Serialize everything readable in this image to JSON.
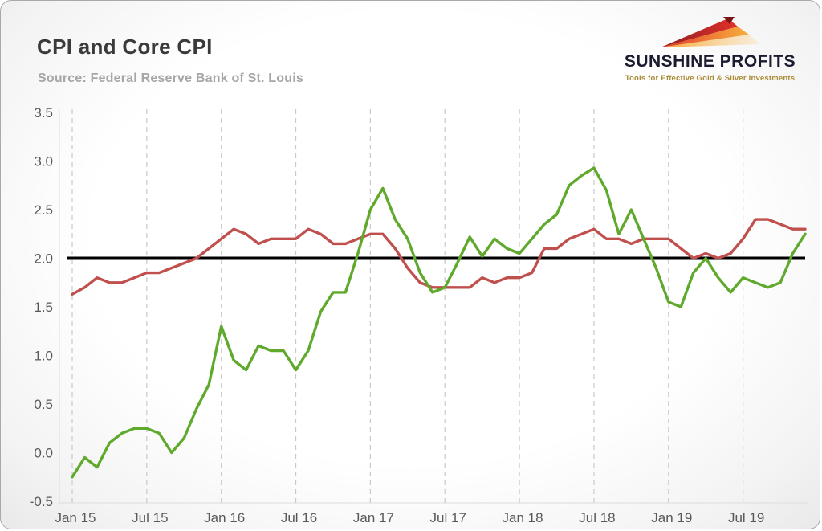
{
  "header": {
    "title": "CPI and Core CPI",
    "source": "Source: Federal Reserve Bank of St. Louis"
  },
  "logo": {
    "name": "SUNSHINE PROFITS",
    "tagline": "Tools for Effective Gold & Silver Investments"
  },
  "colors": {
    "cpi_green": "#5fa92c",
    "core_cpi_red": "#c0504d",
    "reference_black": "#000000",
    "gridline": "#c9c9c9",
    "tick_text": "#595959"
  },
  "chart_data": {
    "type": "line",
    "title": "CPI and Core CPI",
    "xlabel": "",
    "ylabel": "",
    "ylim": [
      -0.5,
      3.5
    ],
    "y_ticks": [
      "-0.5",
      "0.0",
      "0.5",
      "1.0",
      "1.5",
      "2.0",
      "2.5",
      "3.0",
      "3.5"
    ],
    "x_ticks": [
      {
        "label": "Jan 15",
        "index": 0
      },
      {
        "label": "Jul 15",
        "index": 6
      },
      {
        "label": "Jan 16",
        "index": 12
      },
      {
        "label": "Jul 16",
        "index": 18
      },
      {
        "label": "Jan 17",
        "index": 24
      },
      {
        "label": "Jul 17",
        "index": 30
      },
      {
        "label": "Jan 18",
        "index": 36
      },
      {
        "label": "Jul 18",
        "index": 42
      },
      {
        "label": "Jan 19",
        "index": 48
      },
      {
        "label": "Jul 19",
        "index": 54
      }
    ],
    "grid": "vertical-dashed-at-ticks",
    "legend": "none",
    "reference_line": 2.0,
    "series": [
      {
        "name": "Core CPI",
        "color": "#c0504d",
        "values": [
          1.63,
          1.7,
          1.8,
          1.75,
          1.75,
          1.8,
          1.85,
          1.85,
          1.9,
          1.95,
          2.0,
          2.1,
          2.2,
          2.3,
          2.25,
          2.15,
          2.2,
          2.2,
          2.2,
          2.3,
          2.25,
          2.15,
          2.15,
          2.2,
          2.25,
          2.25,
          2.1,
          1.9,
          1.75,
          1.7,
          1.7,
          1.7,
          1.7,
          1.8,
          1.75,
          1.8,
          1.8,
          1.85,
          2.1,
          2.1,
          2.2,
          2.25,
          2.3,
          2.2,
          2.2,
          2.15,
          2.2,
          2.2,
          2.2,
          2.1,
          2.0,
          2.05,
          2.0,
          2.05,
          2.2,
          2.4,
          2.4,
          2.35,
          2.3,
          2.3
        ]
      },
      {
        "name": "CPI",
        "color": "#5fa92c",
        "values": [
          -0.25,
          -0.05,
          -0.15,
          0.1,
          0.2,
          0.25,
          0.25,
          0.2,
          0.0,
          0.15,
          0.45,
          0.7,
          1.3,
          0.95,
          0.85,
          1.1,
          1.05,
          1.05,
          0.85,
          1.05,
          1.45,
          1.65,
          1.65,
          2.05,
          2.5,
          2.72,
          2.4,
          2.2,
          1.85,
          1.65,
          1.7,
          1.95,
          2.22,
          2.02,
          2.2,
          2.1,
          2.05,
          2.2,
          2.35,
          2.45,
          2.75,
          2.85,
          2.93,
          2.7,
          2.25,
          2.5,
          2.2,
          1.9,
          1.55,
          1.5,
          1.85,
          2.0,
          1.8,
          1.65,
          1.8,
          1.75,
          1.7,
          1.75,
          2.05,
          2.25
        ]
      }
    ]
  }
}
